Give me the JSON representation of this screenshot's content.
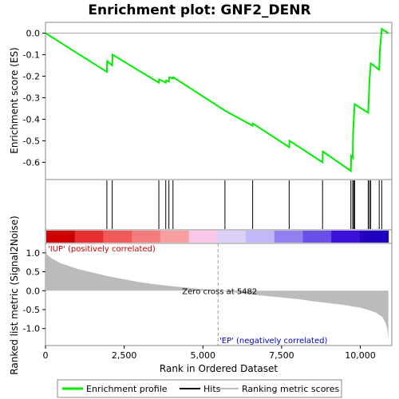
{
  "chart_data": {
    "type": "line",
    "title": "Enrichment plot: GNF2_DENR",
    "xlabel": "Rank in Ordered Dataset",
    "ylabel_top": "Enrichment score (ES)",
    "ylabel_bottom": "Ranked list metric (Signal2Noise)",
    "xlim": [
      0,
      11000
    ],
    "x_ticks": [
      {
        "value": 0,
        "label": "0"
      },
      {
        "value": 2500,
        "label": "2,500"
      },
      {
        "value": 5000,
        "label": "5,000"
      },
      {
        "value": 7500,
        "label": "7,500"
      },
      {
        "value": 10000,
        "label": "10,000"
      }
    ],
    "es_ylim": [
      -0.68,
      0.05
    ],
    "es_ticks": [
      {
        "value": 0.0,
        "label": "0.0"
      },
      {
        "value": -0.1,
        "label": "-0.1"
      },
      {
        "value": -0.2,
        "label": "-0.2"
      },
      {
        "value": -0.3,
        "label": "-0.3"
      },
      {
        "value": -0.4,
        "label": "-0.4"
      },
      {
        "value": -0.5,
        "label": "-0.5"
      },
      {
        "value": -0.6,
        "label": "-0.6"
      }
    ],
    "metric_ylim": [
      -1.45,
      1.25
    ],
    "metric_ticks": [
      {
        "value": 1.0,
        "label": "1.0"
      },
      {
        "value": 0.5,
        "label": "0.5"
      },
      {
        "value": 0.0,
        "label": "0.0"
      },
      {
        "value": -0.5,
        "label": "-0.5"
      },
      {
        "value": -1.0,
        "label": "-1.0"
      }
    ],
    "series": [
      {
        "name": "Enrichment profile",
        "color": "#00ee00",
        "points": [
          [
            0,
            0.0
          ],
          [
            1950,
            -0.18
          ],
          [
            1960,
            -0.13
          ],
          [
            2120,
            -0.15
          ],
          [
            2130,
            -0.1
          ],
          [
            3600,
            -0.23
          ],
          [
            3610,
            -0.215
          ],
          [
            3820,
            -0.23
          ],
          [
            3830,
            -0.22
          ],
          [
            3920,
            -0.225
          ],
          [
            3930,
            -0.205
          ],
          [
            4050,
            -0.21
          ],
          [
            4060,
            -0.205
          ],
          [
            5700,
            -0.36
          ],
          [
            6580,
            -0.43
          ],
          [
            6590,
            -0.42
          ],
          [
            7740,
            -0.53
          ],
          [
            7750,
            -0.5
          ],
          [
            8800,
            -0.6
          ],
          [
            8810,
            -0.55
          ],
          [
            9700,
            -0.64
          ],
          [
            9710,
            -0.57
          ],
          [
            9760,
            -0.58
          ],
          [
            9770,
            -0.46
          ],
          [
            9790,
            -0.4
          ],
          [
            9820,
            -0.33
          ],
          [
            10250,
            -0.37
          ],
          [
            10270,
            -0.3
          ],
          [
            10290,
            -0.22
          ],
          [
            10330,
            -0.14
          ],
          [
            10600,
            -0.17
          ],
          [
            10620,
            -0.08
          ],
          [
            10680,
            0.02
          ],
          [
            10890,
            0.0
          ]
        ]
      }
    ],
    "hits": [
      1950,
      2120,
      3600,
      3820,
      3920,
      4050,
      5700,
      6580,
      7740,
      8800,
      9700,
      9760,
      9790,
      9820,
      10250,
      10290,
      10330,
      10600,
      10680
    ],
    "metric_curve": [
      [
        0,
        1.2
      ],
      [
        50,
        0.95
      ],
      [
        200,
        0.85
      ],
      [
        500,
        0.72
      ],
      [
        1000,
        0.58
      ],
      [
        1500,
        0.48
      ],
      [
        2000,
        0.38
      ],
      [
        2500,
        0.3
      ],
      [
        3000,
        0.22
      ],
      [
        3500,
        0.17
      ],
      [
        4000,
        0.12
      ],
      [
        4500,
        0.08
      ],
      [
        5000,
        0.04
      ],
      [
        5482,
        0.0
      ],
      [
        6000,
        -0.05
      ],
      [
        6500,
        -0.1
      ],
      [
        7000,
        -0.14
      ],
      [
        7500,
        -0.18
      ],
      [
        8000,
        -0.22
      ],
      [
        8500,
        -0.28
      ],
      [
        9000,
        -0.33
      ],
      [
        9500,
        -0.38
      ],
      [
        10000,
        -0.45
      ],
      [
        10300,
        -0.52
      ],
      [
        10500,
        -0.58
      ],
      [
        10700,
        -0.7
      ],
      [
        10800,
        -0.85
      ],
      [
        10850,
        -1.0
      ],
      [
        10880,
        -1.2
      ],
      [
        10890,
        -1.38
      ]
    ],
    "heatmap_bands": [
      "#cc0000",
      "#e83030",
      "#f25a5a",
      "#f57c7c",
      "#f8a0a0",
      "#fac8e8",
      "#dcd0f8",
      "#c0b8f8",
      "#9080f0",
      "#6a50e8",
      "#3c10d8",
      "#2200c0"
    ],
    "zero_cross_label": "Zero cross at 5482",
    "zero_cross_x": 5482,
    "positive_label": "'IUP' (positively correlated)",
    "negative_label": "'EP' (negatively correlated)",
    "legend": [
      {
        "name": "Enrichment profile",
        "color": "#00ee00"
      },
      {
        "name": "Hits",
        "color": "#000000"
      },
      {
        "name": "Ranking metric scores",
        "color": "#bbbbbb"
      }
    ]
  }
}
